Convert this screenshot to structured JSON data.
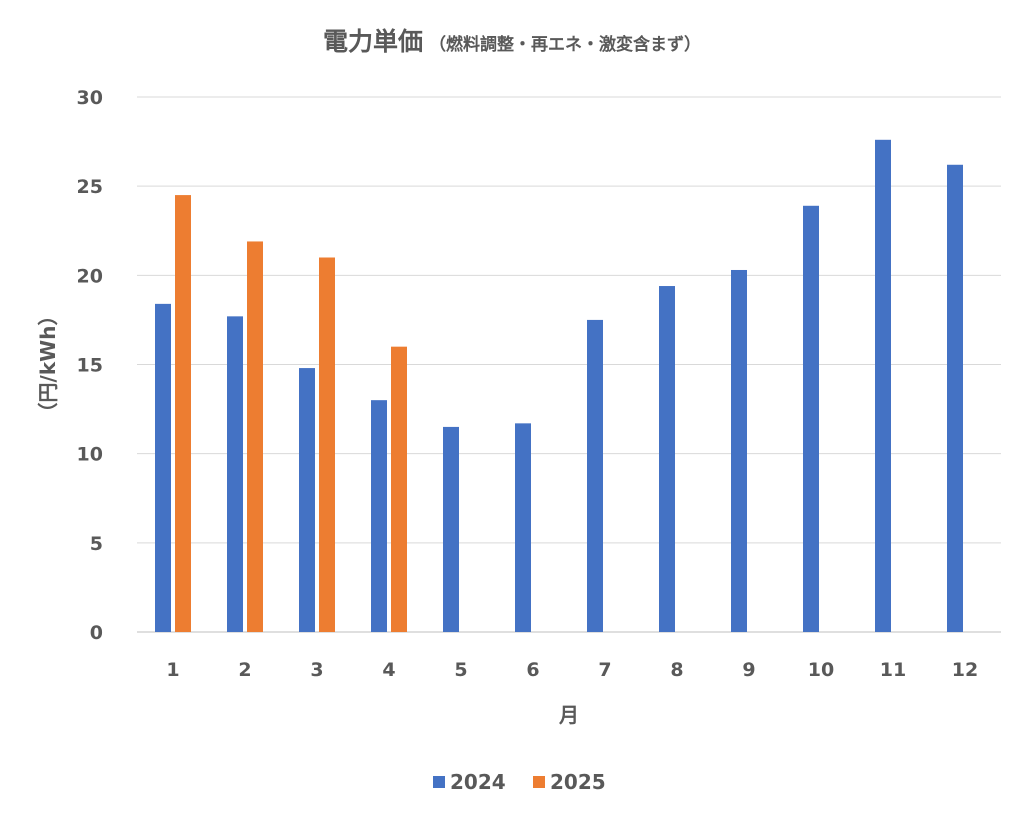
{
  "chart_data": {
    "type": "bar",
    "title": "電力単価",
    "subtitle": "（燃料調整・再エネ・激変含まず）",
    "xlabel": "月",
    "ylabel": "（円/kWh）",
    "categories": [
      "1",
      "2",
      "3",
      "4",
      "5",
      "6",
      "7",
      "8",
      "9",
      "10",
      "11",
      "12"
    ],
    "yticks": [
      "0",
      "5",
      "10",
      "15",
      "20",
      "25",
      "30"
    ],
    "ylim": [
      0,
      30
    ],
    "grid": true,
    "legend_position": "bottom",
    "series": [
      {
        "name": "2024",
        "color": "#4472C4",
        "values": [
          18.4,
          17.7,
          14.8,
          13.0,
          11.5,
          11.7,
          17.5,
          19.4,
          20.3,
          23.9,
          27.6,
          26.2
        ]
      },
      {
        "name": "2025",
        "color": "#ED7D31",
        "values": [
          24.5,
          21.9,
          21.0,
          16.0,
          null,
          null,
          null,
          null,
          null,
          null,
          null,
          null
        ]
      }
    ]
  }
}
